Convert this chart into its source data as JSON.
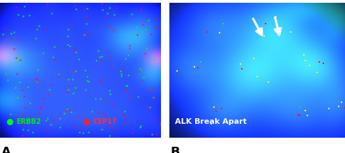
{
  "fig_width": 4.95,
  "fig_height": 2.2,
  "dpi": 100,
  "panel_A": {
    "label": "A",
    "bg_color": "#000000",
    "legend_text_erbb2": "ERBB2",
    "legend_text_cep17": "CEP17",
    "legend_color_erbb2": "#00ee00",
    "legend_color_cep17": "#ff3030"
  },
  "panel_B": {
    "label": "B",
    "annotation": "ALK Break Apart",
    "bg_color": "#000000"
  },
  "label_fontsize": 13,
  "legend_fontsize": 7,
  "annotation_fontsize": 8
}
